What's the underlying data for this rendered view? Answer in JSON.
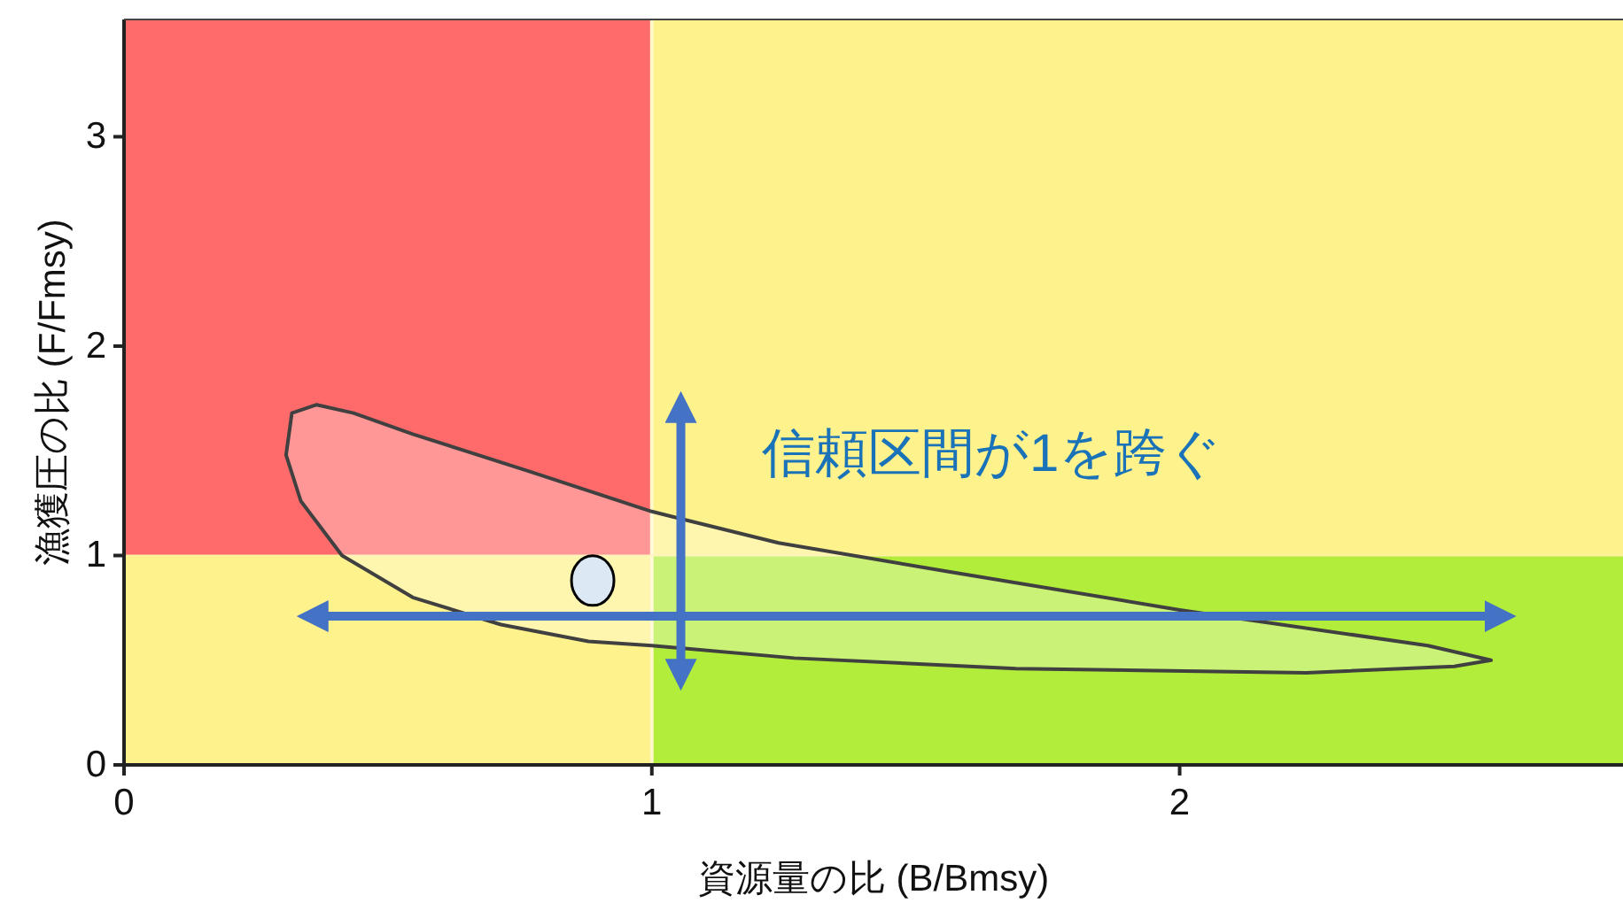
{
  "chart_data": {
    "type": "scatter",
    "xlabel": "資源量の比 (B/Bmsy)",
    "ylabel": "漁獲圧の比 (F/Fmsy)",
    "xlim": [
      0,
      2.84
    ],
    "ylim": [
      0,
      3.56
    ],
    "xticks": [
      0,
      1,
      2
    ],
    "yticks": [
      0,
      1,
      2,
      3
    ],
    "grid": false,
    "ref_lines": [
      {
        "axis": "x",
        "value": 1
      },
      {
        "axis": "y",
        "value": 1
      }
    ],
    "series": [
      {
        "type": "area",
        "color": "#404040",
        "x": [
          0.365,
          0.318,
          0.307,
          0.335,
          0.413,
          0.547,
          0.714,
          0.88,
          1.0,
          1.27,
          1.69,
          2.24,
          2.52,
          2.59,
          2.47,
          2.0,
          1.57,
          1.24,
          1.0,
          0.77,
          0.547,
          0.435,
          0.365
        ],
        "values": [
          1.72,
          1.68,
          1.48,
          1.26,
          1.0,
          0.8,
          0.67,
          0.59,
          0.57,
          0.51,
          0.46,
          0.44,
          0.47,
          0.5,
          0.57,
          0.74,
          0.92,
          1.06,
          1.21,
          1.4,
          1.58,
          1.68,
          1.72
        ]
      },
      {
        "type": "line",
        "color": "#4472c4",
        "x": [
          0.345,
          2.62
        ],
        "values": [
          0.71,
          0.71
        ]
      },
      {
        "type": "line",
        "color": "#4472c4",
        "x": [
          1.055,
          1.055
        ],
        "values": [
          0.4,
          1.74
        ]
      },
      {
        "marker": "circle",
        "color": "#dde8f5",
        "x": [
          0.888
        ],
        "values": [
          0.88
        ]
      }
    ],
    "annotations": [
      "信頼区間が1を跨ぐ"
    ]
  }
}
